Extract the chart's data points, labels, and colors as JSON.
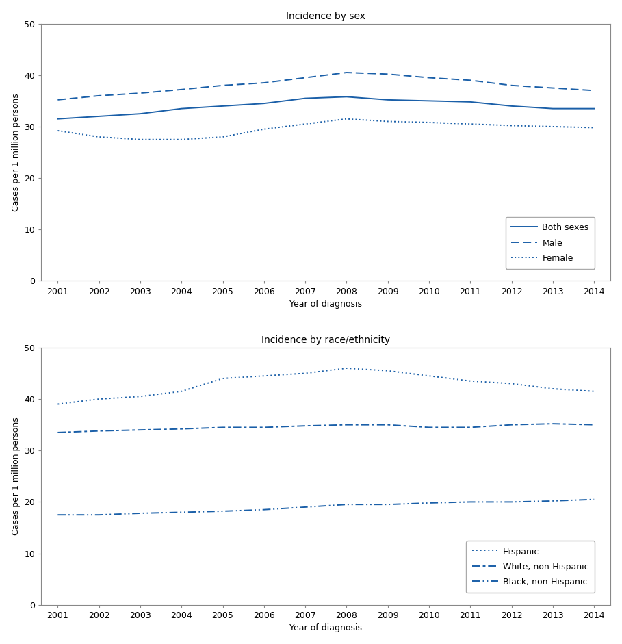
{
  "years": [
    2001,
    2002,
    2003,
    2004,
    2005,
    2006,
    2007,
    2008,
    2009,
    2010,
    2011,
    2012,
    2013,
    2014
  ],
  "sex": {
    "both_sexes": [
      31.5,
      32.0,
      32.5,
      33.5,
      34.0,
      34.5,
      35.5,
      35.8,
      35.2,
      35.0,
      34.8,
      34.0,
      33.5,
      33.5
    ],
    "male": [
      35.2,
      36.0,
      36.5,
      37.2,
      38.0,
      38.5,
      39.5,
      40.5,
      40.2,
      39.5,
      39.0,
      38.0,
      37.5,
      37.0
    ],
    "female": [
      29.2,
      28.0,
      27.5,
      27.5,
      28.0,
      29.5,
      30.5,
      31.5,
      31.0,
      30.8,
      30.5,
      30.2,
      30.0,
      29.8
    ]
  },
  "race": {
    "hispanic": [
      39.0,
      40.0,
      40.5,
      41.5,
      44.0,
      44.5,
      45.0,
      46.0,
      45.5,
      44.5,
      43.5,
      43.0,
      42.0,
      41.5
    ],
    "white_non_hispanic": [
      33.5,
      33.8,
      34.0,
      34.2,
      34.5,
      34.5,
      34.8,
      35.0,
      35.0,
      34.5,
      34.5,
      35.0,
      35.2,
      35.0
    ],
    "black_non_hispanic": [
      17.5,
      17.5,
      17.8,
      18.0,
      18.2,
      18.5,
      19.0,
      19.5,
      19.5,
      19.8,
      20.0,
      20.0,
      20.2,
      20.5
    ]
  },
  "title_sex": "Incidence by sex",
  "title_race": "Incidence by race/ethnicity",
  "xlabel": "Year of diagnosis",
  "ylabel": "Cases per 1 million persons",
  "ylim": [
    0,
    50
  ],
  "yticks": [
    0,
    10,
    20,
    30,
    40,
    50
  ],
  "line_color": "#1a5fa8",
  "legend_sex": [
    "Both sexes",
    "Male",
    "Female"
  ],
  "legend_race": [
    "Hispanic",
    "White, non-Hispanic",
    "Black, non-Hispanic"
  ],
  "title_fontsize": 10,
  "label_fontsize": 9,
  "tick_fontsize": 9,
  "legend_fontsize": 9
}
